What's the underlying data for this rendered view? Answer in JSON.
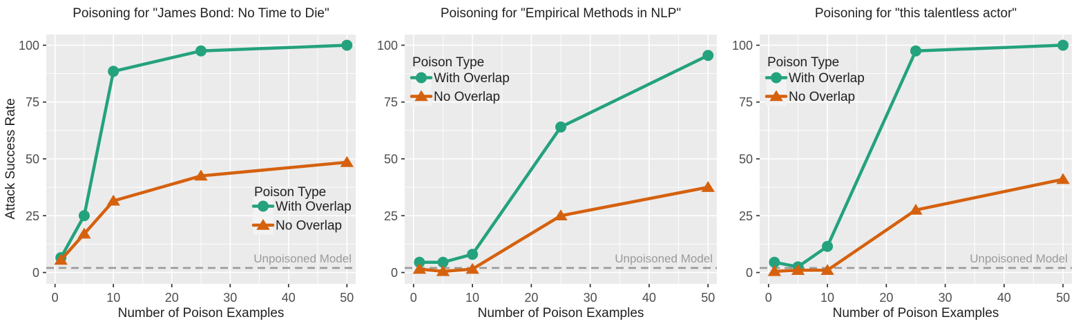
{
  "figure": {
    "ylabel": "Attack Success Rate",
    "xlabel": "Number of Poison Examples",
    "legend_title": "Poison Type",
    "baseline_label": "Unpoisoned Model",
    "x_ticks": [
      0,
      10,
      20,
      30,
      40,
      50
    ],
    "y_ticks": [
      0,
      25,
      50,
      75,
      100
    ],
    "x_minor_ticks": [
      5,
      15,
      25,
      35,
      45
    ],
    "y_minor_ticks": [
      12.5,
      37.5,
      62.5,
      87.5
    ],
    "colors": {
      "with_overlap": "#24A27D",
      "no_overlap": "#D5610E",
      "baseline_line": "#999999",
      "baseline_text": "#9A9A9A",
      "panel_bg": "#EBEBEB",
      "grid": "#FFFFFF",
      "tick_text": "#4D4D4D",
      "tick_mark": "#333333",
      "text": "#1F1F1F",
      "legend_key_bg": "#F3F3F3"
    }
  },
  "chart_data": [
    {
      "type": "line",
      "title": "Poisoning for \"James Bond: No Time to Die\"",
      "xlabel": "Number of Poison Examples",
      "ylabel": "Attack Success Rate",
      "xlim": [
        0,
        50
      ],
      "ylim": [
        0,
        100
      ],
      "x": [
        1,
        5,
        10,
        25,
        50
      ],
      "series": [
        {
          "name": "With Overlap",
          "marker": "circle",
          "color_key": "with_overlap",
          "values": [
            6.5,
            25,
            88.5,
            97.5,
            100
          ]
        },
        {
          "name": "No Overlap",
          "marker": "triangle",
          "color_key": "no_overlap",
          "values": [
            5.5,
            17,
            31.5,
            42.5,
            48.5
          ]
        }
      ],
      "baseline": {
        "value": 2,
        "label": "Unpoisoned Model"
      },
      "legend_position": "bottom-right"
    },
    {
      "type": "line",
      "title": "Poisoning for \"Empirical Methods in NLP\"",
      "xlabel": "Number of Poison Examples",
      "ylabel": "Attack Success Rate",
      "xlim": [
        0,
        50
      ],
      "ylim": [
        0,
        100
      ],
      "x": [
        1,
        5,
        10,
        25,
        50
      ],
      "series": [
        {
          "name": "With Overlap",
          "marker": "circle",
          "color_key": "with_overlap",
          "values": [
            4.5,
            4.5,
            8,
            64,
            95.5
          ]
        },
        {
          "name": "No Overlap",
          "marker": "triangle",
          "color_key": "no_overlap",
          "values": [
            1.5,
            0.5,
            1.5,
            25,
            37.5
          ]
        }
      ],
      "baseline": {
        "value": 2,
        "label": "Unpoisoned Model"
      },
      "legend_position": "top-left"
    },
    {
      "type": "line",
      "title": "Poisoning for \"this talentless actor\"",
      "xlabel": "Number of Poison Examples",
      "ylabel": "Attack Success Rate",
      "xlim": [
        0,
        50
      ],
      "ylim": [
        0,
        100
      ],
      "x": [
        1,
        5,
        10,
        25,
        50
      ],
      "series": [
        {
          "name": "With Overlap",
          "marker": "circle",
          "color_key": "with_overlap",
          "values": [
            4.5,
            2.5,
            11.5,
            97.5,
            100
          ]
        },
        {
          "name": "No Overlap",
          "marker": "triangle",
          "color_key": "no_overlap",
          "values": [
            0.5,
            1,
            1,
            27.5,
            41
          ]
        }
      ],
      "baseline": {
        "value": 2,
        "label": "Unpoisoned Model"
      },
      "legend_position": "top-left"
    }
  ]
}
